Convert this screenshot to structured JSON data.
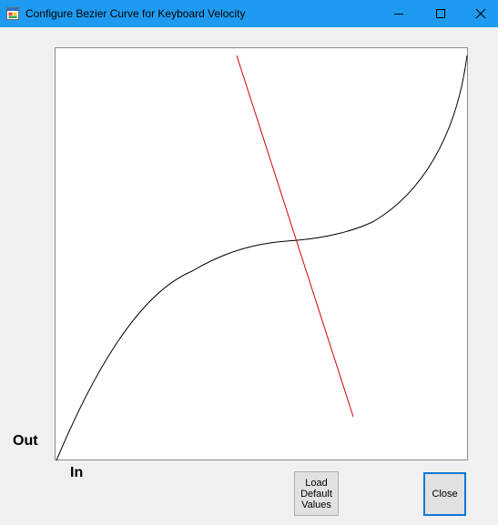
{
  "window": {
    "title": "Configure Bezier Curve for Keyboard Velocity",
    "icon": "app-window-icon",
    "controls": {
      "minimize": "minimize-icon",
      "maximize": "maximize-icon",
      "close": "close-icon"
    },
    "titlebar_color": "#1e9bf0"
  },
  "graph": {
    "y_axis_label": "Out",
    "x_axis_label": "In",
    "curve_color": "#000000",
    "control_line_color": "#cc0000",
    "background_color": "#ffffff"
  },
  "buttons": {
    "load_default": "Load\nDefault\nValues",
    "close": "Close"
  }
}
